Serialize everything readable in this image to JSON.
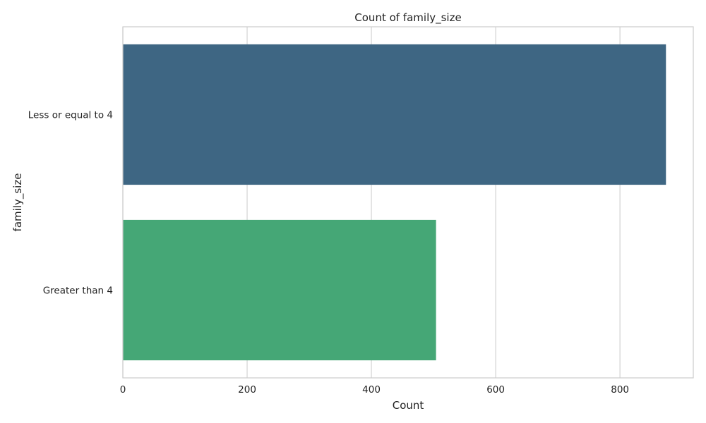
{
  "chart_data": {
    "type": "bar",
    "orientation": "horizontal",
    "title": "Count of family_size",
    "xlabel": "Count",
    "ylabel": "family_size",
    "categories": [
      "Less or equal to 4",
      "Greater than 4"
    ],
    "values": [
      874,
      504
    ],
    "bar_colors": [
      "#3e6683",
      "#45a776"
    ],
    "xlim": [
      0,
      918
    ],
    "xticks": [
      0,
      200,
      400,
      600,
      800
    ],
    "grid": true,
    "legend": "none"
  },
  "style": {
    "grid_color": "#d3d3d3",
    "spine_color": "#cccccc",
    "text_color": "#222222"
  }
}
